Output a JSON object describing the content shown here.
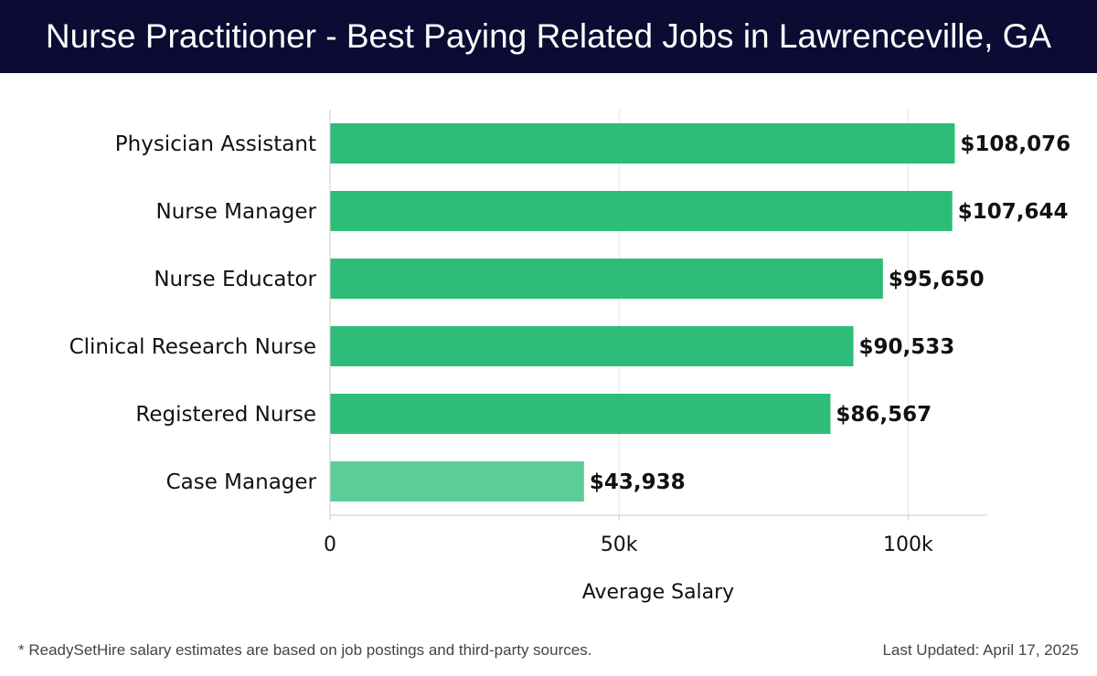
{
  "header": {
    "title": "Nurse Practitioner - Best Paying Related Jobs in Lawrenceville, GA"
  },
  "chart_data": {
    "type": "bar",
    "orientation": "horizontal",
    "categories": [
      "Physician Assistant",
      "Nurse Manager",
      "Nurse Educator",
      "Clinical Research Nurse",
      "Registered Nurse",
      "Case Manager"
    ],
    "values": [
      108076,
      107644,
      95650,
      90533,
      86567,
      43938
    ],
    "value_labels": [
      "$108,076",
      "$107,644",
      "$95,650",
      "$90,533",
      "$86,567",
      "$43,938"
    ],
    "xlabel": "Average Salary",
    "ylabel": "",
    "xlim": [
      0,
      113700
    ],
    "xticks": [
      0,
      50000,
      100000
    ],
    "xtick_labels": [
      "0",
      "50k",
      "100k"
    ],
    "grid": true,
    "colors": {
      "bar": "#2dbd78",
      "bar_light": "#5ccd97"
    }
  },
  "footer": {
    "note": "* ReadySetHire salary estimates are based on job postings and third-party sources.",
    "updated": "Last Updated: April 17, 2025"
  }
}
